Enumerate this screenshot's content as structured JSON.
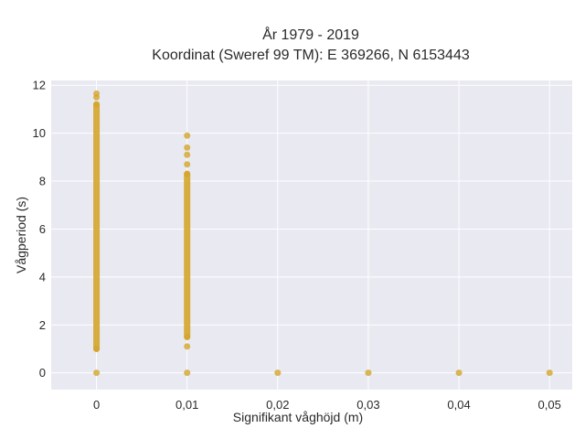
{
  "chart_data": {
    "type": "scatter",
    "title_line1": "År 1979 - 2019",
    "title_line2": "Koordinat (Sweref 99 TM): E 369266, N 6153443",
    "xlabel": "Signifikant våghöjd (m)",
    "ylabel": "Vågperiod (s)",
    "xlim": [
      -0.005,
      0.0525
    ],
    "ylim": [
      -0.7,
      12.2
    ],
    "xticks": [
      0,
      0.01,
      0.02,
      0.03,
      0.04,
      0.05
    ],
    "xtick_labels": [
      "0",
      "0,01",
      "0,02",
      "0,03",
      "0,04",
      "0,05"
    ],
    "yticks": [
      0,
      2,
      4,
      6,
      8,
      10,
      12
    ],
    "ytick_labels": [
      "0",
      "2",
      "4",
      "6",
      "8",
      "10",
      "12"
    ],
    "grid": true,
    "marker_color": "#D4A52A",
    "background_color": "#E9E9F1",
    "points": {
      "x": [
        0,
        0,
        0,
        0,
        0,
        0.01,
        0.01,
        0.01,
        0.01,
        0.01,
        0.01,
        0.01,
        0.01,
        0.02,
        0.03,
        0.04,
        0.05
      ],
      "y": [
        0,
        1.0,
        11.2,
        11.5,
        11.65,
        0,
        1.1,
        1.5,
        8.3,
        8.7,
        9.1,
        9.4,
        9.9,
        0,
        0,
        0,
        0
      ]
    },
    "ranges": [
      {
        "x": 0,
        "y_min": 1.0,
        "y_max": 11.2
      },
      {
        "x": 0.01,
        "y_min": 1.5,
        "y_max": 8.3
      }
    ]
  }
}
